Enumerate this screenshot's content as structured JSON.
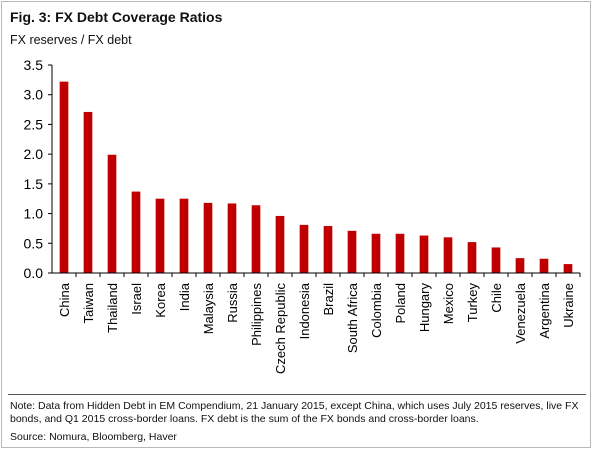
{
  "figure": {
    "title": "Fig. 3: FX Debt Coverage Ratios",
    "subtitle": "FX reserves / FX debt",
    "note": "Note: Data from Hidden Debt in EM Compendium, 21 January 2015, except China, which uses July 2015 reserves, live FX bonds, and Q1 2015 cross-border loans. FX debt is the sum of the FX bonds and cross-border loans.",
    "source": "Source: Nomura, Bloomberg, Haver"
  },
  "chart_data": {
    "type": "bar",
    "categories": [
      "China",
      "Taiwan",
      "Thailand",
      "Israel",
      "Korea",
      "India",
      "Malaysia",
      "Russia",
      "Philippines",
      "Czech Republic",
      "Indonesia",
      "Brazil",
      "South Africa",
      "Colombia",
      "Poland",
      "Hungary",
      "Mexico",
      "Turkey",
      "Chile",
      "Venezuela",
      "Argentina",
      "Ukraine"
    ],
    "values": [
      3.22,
      2.71,
      1.99,
      1.37,
      1.25,
      1.25,
      1.18,
      1.17,
      1.14,
      0.96,
      0.81,
      0.79,
      0.71,
      0.66,
      0.66,
      0.63,
      0.6,
      0.52,
      0.43,
      0.25,
      0.24,
      0.15
    ],
    "ylim": [
      0,
      3.5
    ],
    "yticks": [
      "0.0",
      "0.5",
      "1.0",
      "1.5",
      "2.0",
      "2.5",
      "3.0",
      "3.5"
    ],
    "bar_color": "#c00000",
    "grid": false,
    "legend": "none"
  }
}
